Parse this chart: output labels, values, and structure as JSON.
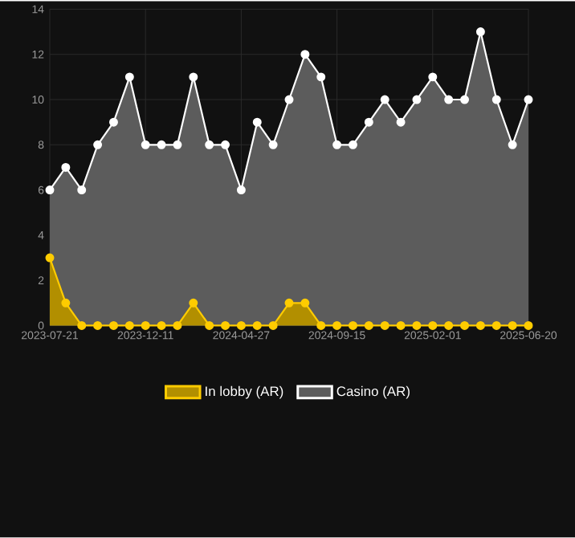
{
  "chart_data": {
    "type": "area",
    "categories": [
      "2023-07-21",
      null,
      null,
      null,
      null,
      null,
      "2023-12-11",
      null,
      null,
      null,
      null,
      null,
      "2024-04-27",
      null,
      null,
      null,
      null,
      null,
      "2024-09-15",
      null,
      null,
      null,
      null,
      null,
      "2025-02-01",
      null,
      null,
      null,
      null,
      null,
      "2025-06-20"
    ],
    "series": [
      {
        "name": "In lobby (AR)",
        "color": "#ffcc00",
        "values": [
          3,
          1,
          0,
          0,
          0,
          0,
          0,
          0,
          0,
          1,
          0,
          0,
          0,
          0,
          0,
          1,
          1,
          0,
          0,
          0,
          0,
          0,
          0,
          0,
          0,
          0,
          0,
          0,
          0,
          0,
          0
        ]
      },
      {
        "name": "Casino (AR)",
        "color": "#ffffff",
        "values": [
          6,
          7,
          6,
          8,
          9,
          11,
          8,
          8,
          8,
          11,
          8,
          8,
          6,
          9,
          8,
          10,
          12,
          11,
          8,
          8,
          9,
          10,
          9,
          10,
          11,
          10,
          10,
          13,
          10,
          8,
          10
        ]
      }
    ],
    "ylim": [
      0,
      14
    ],
    "yticks": [
      0,
      2,
      4,
      6,
      8,
      10,
      12,
      14
    ],
    "grid": true,
    "legend": "bottom",
    "marker": "circle",
    "line_style": "solid"
  }
}
